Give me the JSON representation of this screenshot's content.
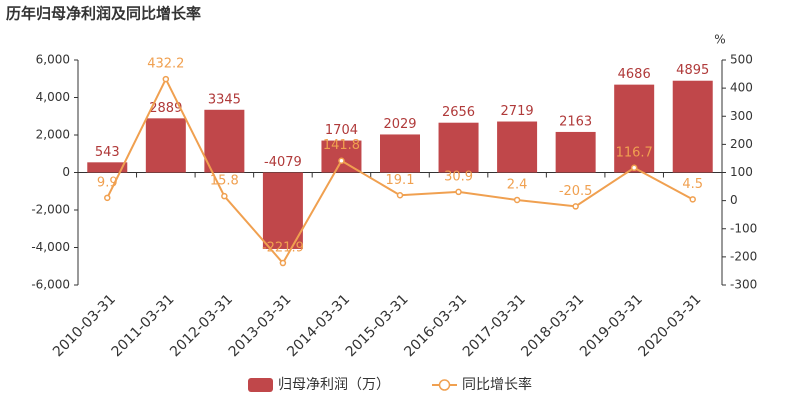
{
  "chart_data": {
    "type": "combo",
    "title": "历年归母净利润及同比增长率",
    "categories": [
      "2010-03-31",
      "2011-03-31",
      "2012-03-31",
      "2013-03-31",
      "2014-03-31",
      "2015-03-31",
      "2016-03-31",
      "2017-03-31",
      "2018-03-31",
      "2019-03-31",
      "2020-03-31"
    ],
    "series": [
      {
        "name": "归母净利润（万）",
        "type": "bar",
        "color": "#c0474a",
        "label_color": "#b03a3a",
        "values": [
          543,
          2889,
          3345,
          -4079,
          1704,
          2029,
          2656,
          2719,
          2163,
          4686,
          4895
        ]
      },
      {
        "name": "同比增长率",
        "type": "line",
        "axis": "y2",
        "color": "#f0a050",
        "label_color": "#f0a050",
        "values": [
          9.9,
          432.2,
          15.8,
          -221.9,
          141.8,
          19.1,
          30.9,
          2.4,
          -20.5,
          116.7,
          4.5
        ]
      }
    ],
    "ylim": [
      -6000,
      6000
    ],
    "yticks": [
      {
        "value": 6000,
        "label": "6,000"
      },
      {
        "value": 4000,
        "label": "4,000"
      },
      {
        "value": 2000,
        "label": "2,000"
      },
      0,
      {
        "value": -2000,
        "label": "-2,000"
      },
      {
        "value": -4000,
        "label": "-4,000"
      },
      {
        "value": -6000,
        "label": "-6,000"
      }
    ],
    "y2label": "%",
    "y2lim": [
      -300,
      500
    ],
    "y2ticks": [
      500,
      400,
      300,
      200,
      100,
      0,
      -100,
      -200,
      -300
    ]
  }
}
